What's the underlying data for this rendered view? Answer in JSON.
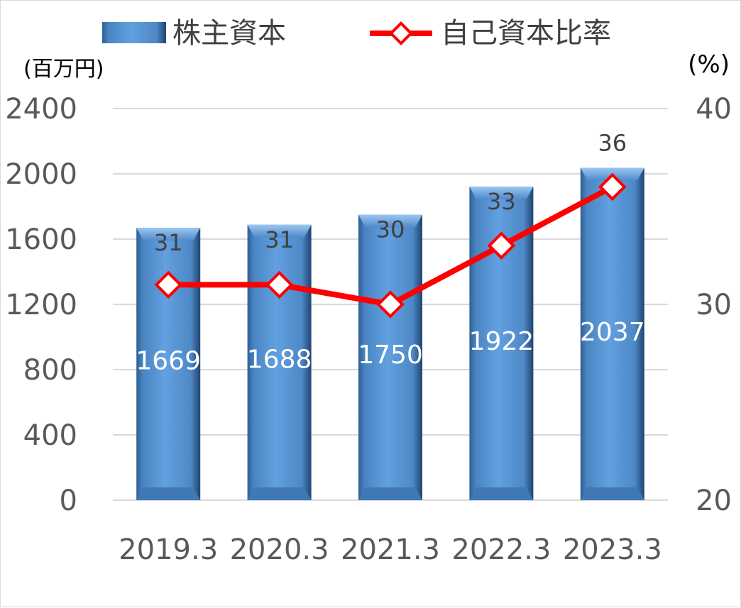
{
  "chart_data": {
    "type": "bar",
    "categories": [
      "2019.3",
      "2020.3",
      "2021.3",
      "2022.3",
      "2023.3"
    ],
    "series": [
      {
        "name": "株主資本",
        "type": "bar",
        "axis": "left",
        "values": [
          1669,
          1688,
          1750,
          1922,
          2037
        ],
        "color": "#5b9bd5"
      },
      {
        "name": "自己資本比率",
        "type": "line",
        "axis": "right",
        "values": [
          31,
          31,
          30,
          33,
          36
        ],
        "color": "#ff0000"
      }
    ],
    "y_left": {
      "unit_label": "(百万円)",
      "range": [
        0,
        2400
      ],
      "ticks": [
        "0",
        "400",
        "800",
        "1200",
        "1600",
        "2000",
        "2400"
      ]
    },
    "y_right": {
      "unit_label": "(%)",
      "range": [
        20,
        40
      ],
      "ticks": [
        "20",
        "30",
        "40"
      ]
    },
    "grid": true,
    "legend_position": "top"
  }
}
